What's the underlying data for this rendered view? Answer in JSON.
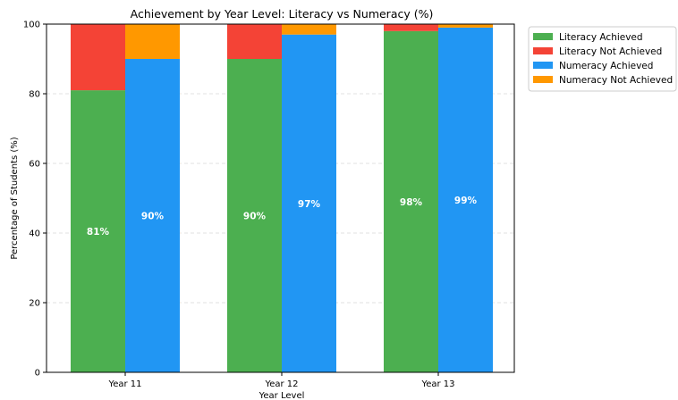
{
  "chart_data": {
    "type": "bar",
    "title": "Achievement by Year Level: Literacy vs Numeracy (%)",
    "xlabel": "Year Level",
    "ylabel": "Percentage of Students (%)",
    "ylim": [
      0,
      100
    ],
    "yticks": [
      0,
      20,
      40,
      60,
      80,
      100
    ],
    "categories": [
      "Year 11",
      "Year 12",
      "Year 13"
    ],
    "series": [
      {
        "name": "Literacy Achieved",
        "group": "literacy",
        "values": [
          81,
          90,
          98
        ],
        "color": "#4caf50"
      },
      {
        "name": "Literacy Not Achieved",
        "group": "literacy",
        "values": [
          19,
          10,
          2
        ],
        "color": "#f44336"
      },
      {
        "name": "Numeracy Achieved",
        "group": "numeracy",
        "values": [
          90,
          97,
          99
        ],
        "color": "#2196f3"
      },
      {
        "name": "Numeracy Not Achieved",
        "group": "numeracy",
        "values": [
          10,
          3,
          1
        ],
        "color": "#ff9800"
      }
    ],
    "data_labels": {
      "literacy": [
        "81%",
        "90%",
        "98%"
      ],
      "numeracy": [
        "90%",
        "97%",
        "99%"
      ]
    },
    "grid": "horizontal-dashed",
    "legend_position": "outside-top-right"
  }
}
